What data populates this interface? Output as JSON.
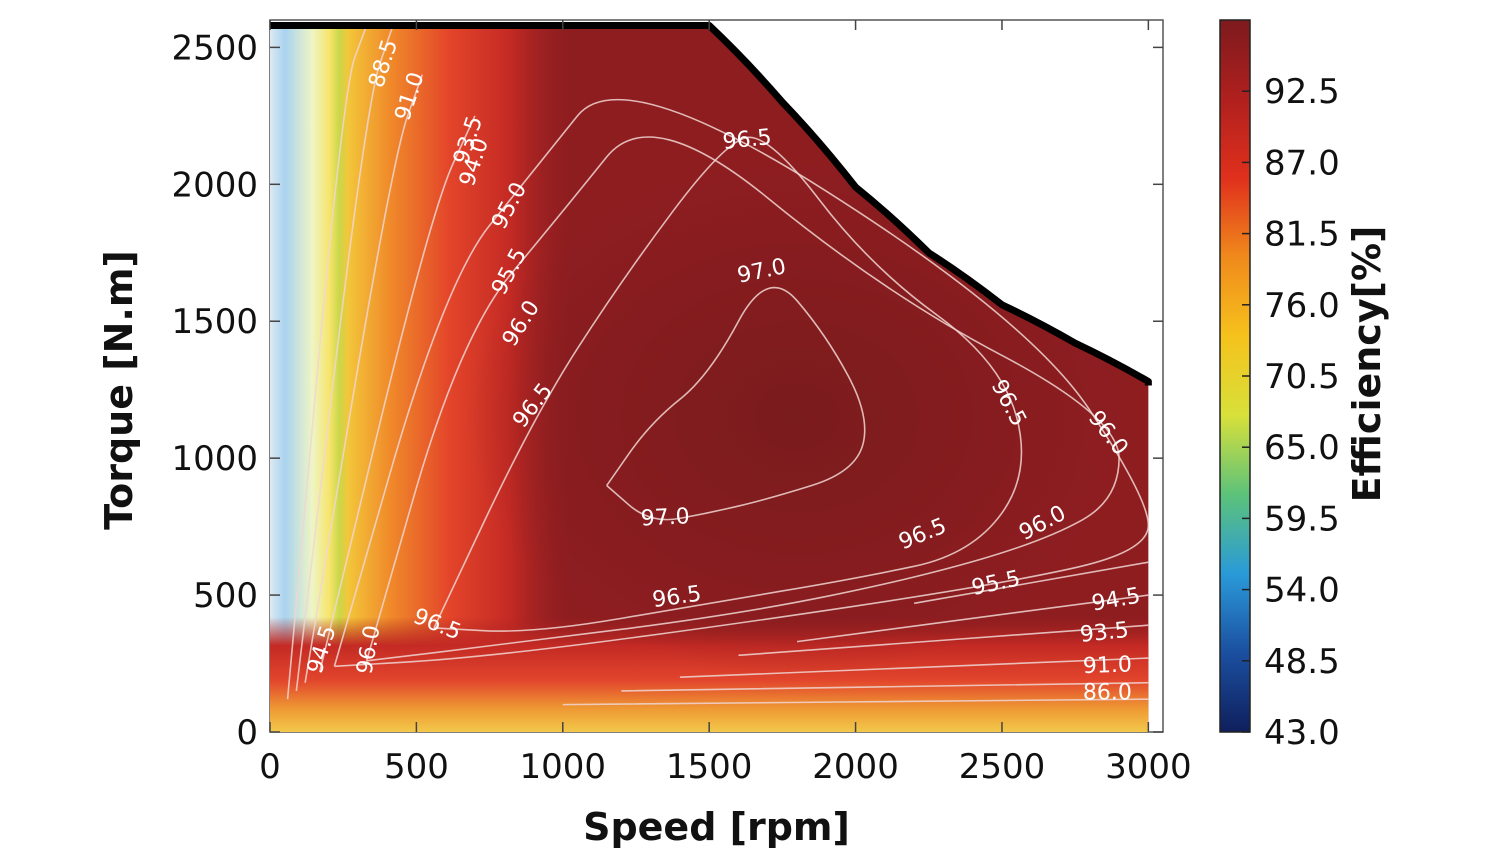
{
  "chart_data": {
    "type": "heatmap",
    "subtype": "efficiency-contour-map",
    "xlabel": "Speed [rpm]",
    "ylabel": "Torque [N.m]",
    "colorbar_label": "Efficiency[%]",
    "xlim": [
      0,
      3050
    ],
    "ylim": [
      0,
      2600
    ],
    "xticks": [
      0,
      500,
      1000,
      1500,
      2000,
      2500,
      3000
    ],
    "yticks": [
      0,
      500,
      1000,
      1500,
      2000,
      2500
    ],
    "colorbar_range": [
      43.0,
      98.0
    ],
    "colorbar_ticks": [
      "43.0",
      "48.5",
      "54.0",
      "59.5",
      "65.0",
      "70.5",
      "76.0",
      "81.5",
      "87.0",
      "92.5"
    ],
    "colorbar_tick_values": [
      43.0,
      48.5,
      54.0,
      59.5,
      65.0,
      70.5,
      76.0,
      81.5,
      87.0,
      92.5
    ],
    "colormap": [
      "#0f1f5c",
      "#1b4fa0",
      "#2a9ad8",
      "#5cc27a",
      "#d8e03a",
      "#f6c21c",
      "#f08a1c",
      "#e0301c",
      "#b0201e",
      "#7d1a1e"
    ],
    "max_torque_envelope": {
      "speed": [
        0,
        1500,
        1750,
        2000,
        2250,
        2500,
        2750,
        3000
      ],
      "torque": [
        2580,
        2580,
        2300,
        1990,
        1750,
        1560,
        1420,
        1280
      ]
    },
    "max_speed": 3000,
    "contour_labels": [
      {
        "text": "88.5",
        "speed": 390,
        "torque": 2440
      },
      {
        "text": "91.0",
        "speed": 480,
        "torque": 2320
      },
      {
        "text": "93.5",
        "speed": 680,
        "torque": 2160
      },
      {
        "text": "94.0",
        "speed": 700,
        "torque": 2080
      },
      {
        "text": "95.0",
        "speed": 820,
        "torque": 1920
      },
      {
        "text": "95.5",
        "speed": 820,
        "torque": 1680
      },
      {
        "text": "96.0",
        "speed": 860,
        "torque": 1490
      },
      {
        "text": "96.5",
        "speed": 900,
        "torque": 1190
      },
      {
        "text": "96.5",
        "speed": 1630,
        "torque": 2160
      },
      {
        "text": "97.0",
        "speed": 1680,
        "torque": 1680
      },
      {
        "text": "97.0",
        "speed": 1350,
        "torque": 780
      },
      {
        "text": "96.5",
        "speed": 2520,
        "torque": 1200
      },
      {
        "text": "96.0",
        "speed": 2860,
        "torque": 1090
      },
      {
        "text": "96.5",
        "speed": 2230,
        "torque": 720
      },
      {
        "text": "96.0",
        "speed": 2640,
        "torque": 760
      },
      {
        "text": "96.5",
        "speed": 1390,
        "torque": 490
      },
      {
        "text": "95.5",
        "speed": 2480,
        "torque": 540
      },
      {
        "text": "96.5",
        "speed": 570,
        "torque": 390
      },
      {
        "text": "96.0",
        "speed": 340,
        "torque": 300
      },
      {
        "text": "94.5",
        "speed": 180,
        "torque": 300
      },
      {
        "text": "94.5",
        "speed": 2890,
        "torque": 480
      },
      {
        "text": "93.5",
        "speed": 2850,
        "torque": 360
      },
      {
        "text": "91.0",
        "speed": 2860,
        "torque": 240
      },
      {
        "text": "86.0",
        "speed": 2860,
        "torque": 140
      }
    ]
  }
}
